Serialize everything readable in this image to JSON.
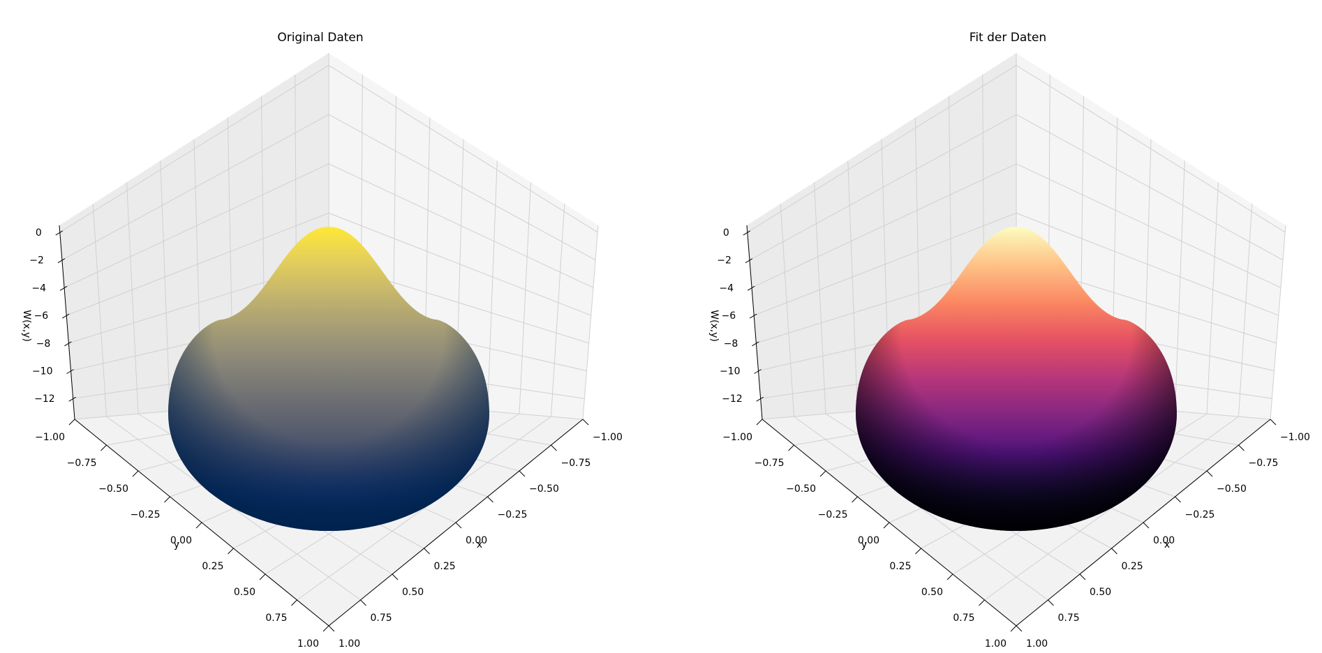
{
  "chart_data": [
    {
      "type": "surface3d",
      "title": "Original Daten",
      "xlabel": "x",
      "ylabel": "y",
      "zlabel": "W(x,y)",
      "colormap": "cividis",
      "colormap_stops": [
        "#00224e",
        "#123570",
        "#3b496c",
        "#575d6d",
        "#707173",
        "#8a8779",
        "#a69d75",
        "#c4b56c",
        "#e4cf5b",
        "#fee838"
      ],
      "x_ticks": [
        "−1.00",
        "−0.75",
        "−0.50",
        "−0.25",
        "0.00",
        "0.25",
        "0.50",
        "0.75",
        "1.00"
      ],
      "y_ticks": [
        "−1.00",
        "−0.75",
        "−0.50",
        "−0.25",
        "0.00",
        "0.25",
        "0.50",
        "0.75",
        "1.00"
      ],
      "z_ticks": [
        "0",
        "−2",
        "−4",
        "−6",
        "−8",
        "−10",
        "−12"
      ],
      "xlim": [
        -1,
        1
      ],
      "ylim": [
        -1,
        1
      ],
      "zlim": [
        -13.5,
        0.5
      ],
      "domain": "unit disk",
      "z_peak": 0.5,
      "z_rim": -13.5,
      "grid": true
    },
    {
      "type": "surface3d",
      "title": "Fit der Daten",
      "xlabel": "x",
      "ylabel": "y",
      "zlabel": "W(x,y)",
      "colormap": "magma",
      "colormap_stops": [
        "#000004",
        "#1c1044",
        "#4f127b",
        "#812581",
        "#b5367a",
        "#e55064",
        "#fb8761",
        "#fec287",
        "#fcfdbf"
      ],
      "x_ticks": [
        "−1.00",
        "−0.75",
        "−0.50",
        "−0.25",
        "0.00",
        "0.25",
        "0.50",
        "0.75",
        "1.00"
      ],
      "y_ticks": [
        "−1.00",
        "−0.75",
        "−0.50",
        "−0.25",
        "0.00",
        "0.25",
        "0.50",
        "0.75",
        "1.00"
      ],
      "z_ticks": [
        "0",
        "−2",
        "−4",
        "−6",
        "−8",
        "−10",
        "−12"
      ],
      "xlim": [
        -1,
        1
      ],
      "ylim": [
        -1,
        1
      ],
      "zlim": [
        -13.5,
        0.5
      ],
      "domain": "unit disk",
      "z_peak": 0.5,
      "z_rim": -13.5,
      "grid": true
    }
  ]
}
